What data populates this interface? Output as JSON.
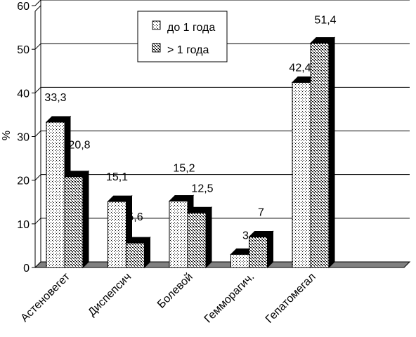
{
  "chart_data": {
    "type": "bar",
    "ylabel": "%",
    "ylim": [
      0,
      60
    ],
    "yticks": [
      0,
      10,
      20,
      30,
      40,
      50,
      60
    ],
    "grid": true,
    "legend_position": "top-center",
    "categories": [
      "Астеновегет",
      "Диспепсич",
      "Болевой",
      "Геммoрагич.",
      "Гепатомегал"
    ],
    "series": [
      {
        "name": "до 1 года",
        "values": [
          33.3,
          15.1,
          15.2,
          3,
          42.4
        ],
        "labels": [
          "33,3",
          "15,1",
          "15,2",
          "3",
          "42,4"
        ]
      },
      {
        "name": "> 1 года",
        "values": [
          20.8,
          5.6,
          12.5,
          7,
          51.4
        ],
        "labels": [
          "20,8",
          "5,6",
          "12,5",
          "7",
          "51,4"
        ]
      }
    ],
    "colors": {
      "bar_fill": "#ffffff",
      "dots": "#000000",
      "shadow": "#000000",
      "floor": "#808080",
      "grid": "#000000"
    }
  }
}
